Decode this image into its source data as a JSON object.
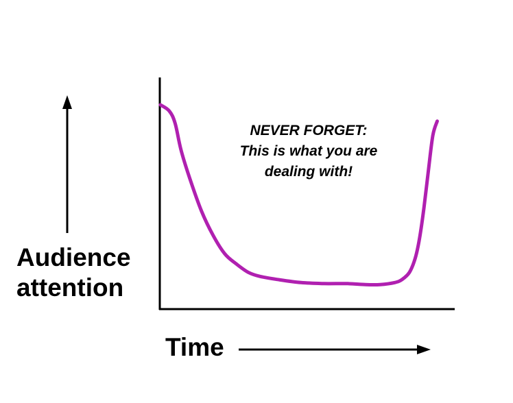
{
  "chart_data": {
    "type": "line",
    "xlabel": "Time",
    "ylabel_lines": [
      "Audience",
      "attention"
    ],
    "annotation_lines": [
      "NEVER FORGET:",
      "This is what you are",
      "dealing with!"
    ],
    "xlim": [
      0,
      100
    ],
    "ylim": [
      0,
      100
    ],
    "grid": false,
    "legend": "none",
    "line_color": "#b020b0",
    "series": [
      {
        "x": [
          0,
          3,
          5,
          7,
          10,
          14,
          18,
          22,
          26,
          30,
          34,
          40,
          48,
          56,
          64,
          70,
          75,
          80,
          82.5,
          85,
          87,
          88.5,
          90,
          91.5,
          93,
          94.5
        ],
        "y": [
          100,
          97,
          91,
          78,
          64,
          48,
          36,
          27,
          22,
          18,
          16,
          14.5,
          13,
          12.5,
          12.5,
          12,
          12,
          13,
          14.5,
          18,
          25,
          35,
          50,
          68,
          85,
          92
        ]
      }
    ]
  }
}
